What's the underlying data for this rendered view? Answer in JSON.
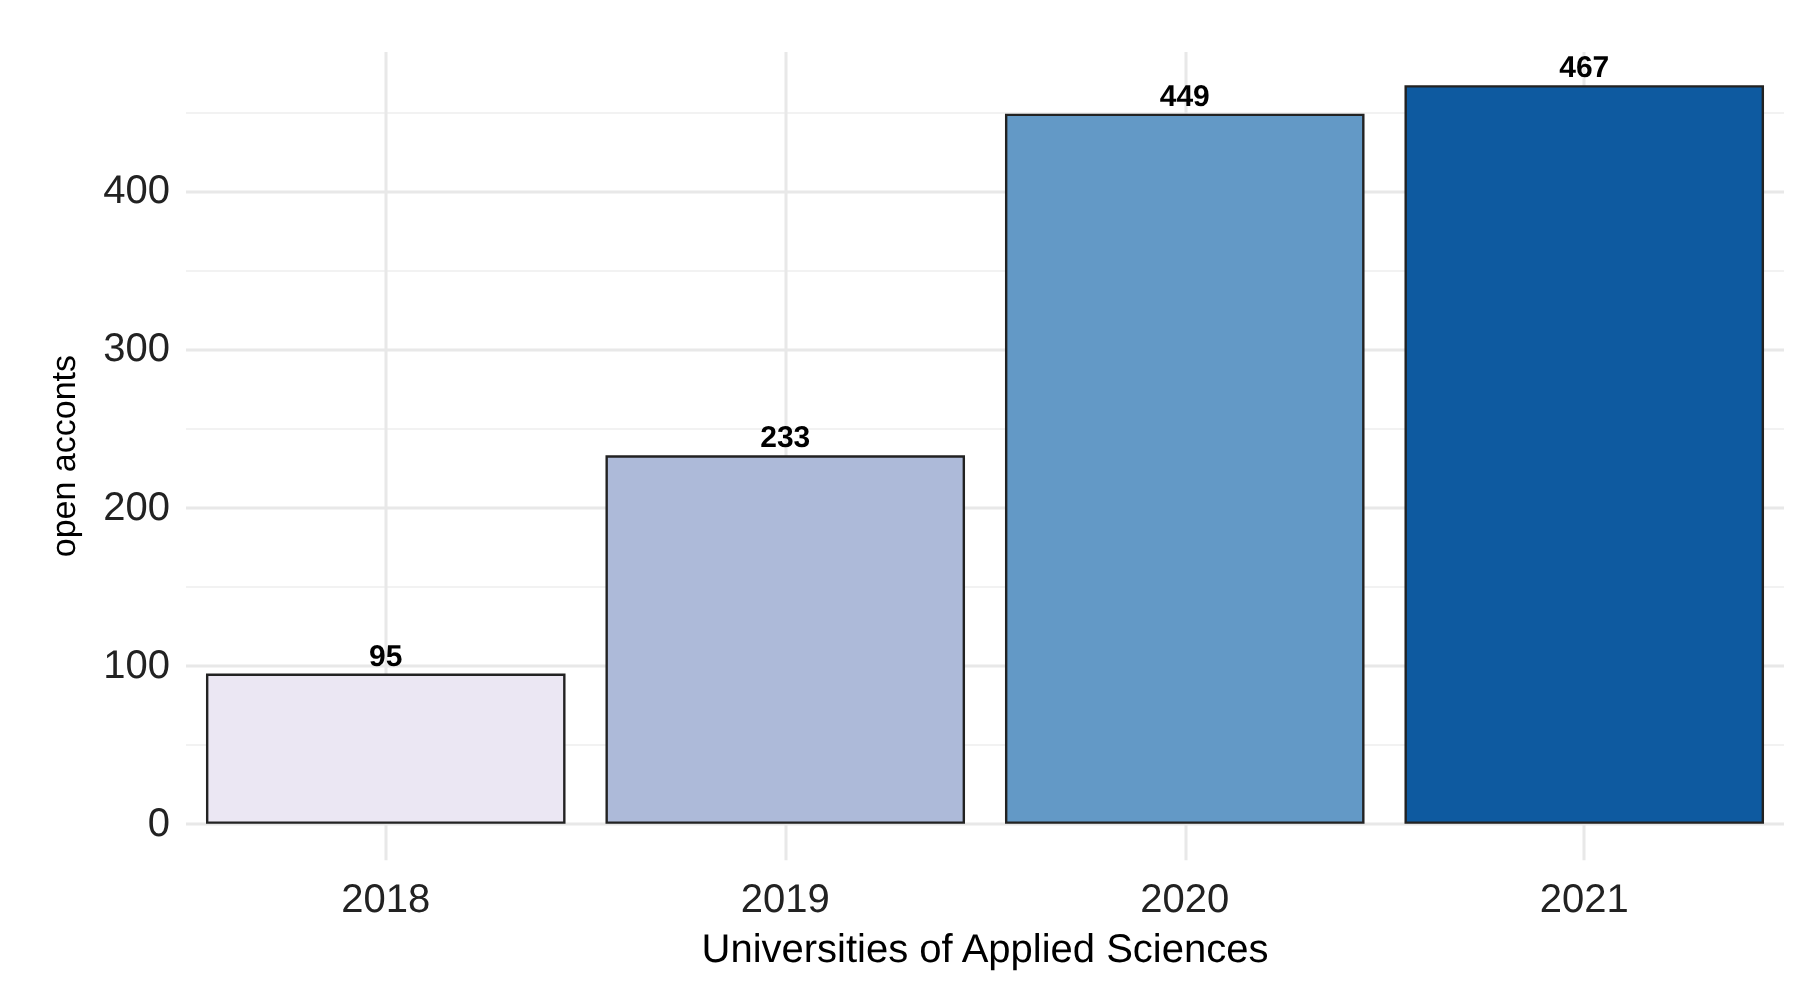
{
  "chart_data": {
    "type": "bar",
    "xlabel": "Universities of Applied Sciences",
    "ylabel": "open acconts",
    "categories": [
      "2018",
      "2019",
      "2020",
      "2021"
    ],
    "values": [
      95,
      233,
      449,
      467
    ],
    "colors": [
      "#ebe7f3",
      "#adbad9",
      "#6399c6",
      "#0e5aa0"
    ],
    "ylim": [
      -23,
      488
    ],
    "yticks": [
      0,
      100,
      200,
      300,
      400
    ],
    "grid": true,
    "data_labels": true
  }
}
